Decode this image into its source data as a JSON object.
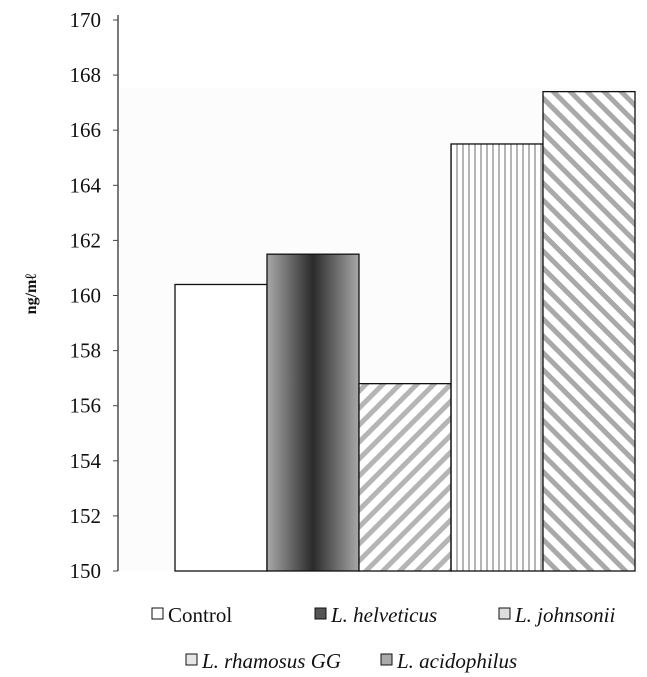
{
  "chart_data": {
    "type": "bar",
    "ylabel": "ng/mℓ",
    "ylim": [
      150,
      170
    ],
    "yticks": [
      150,
      152,
      154,
      156,
      158,
      160,
      162,
      164,
      166,
      168,
      170
    ],
    "series": [
      {
        "name": "Control",
        "value": 160.4,
        "pattern": "white"
      },
      {
        "name": "L. helveticus",
        "value": 161.5,
        "pattern": "dark-gradient"
      },
      {
        "name": "L. johnsonii",
        "value": 156.8,
        "pattern": "diagonal-hatch"
      },
      {
        "name": "L. rhamosus GG",
        "value": 165.5,
        "pattern": "vertical-lines"
      },
      {
        "name": "L. acidophilus",
        "value": 167.4,
        "pattern": "diagonal-hatch-dense"
      }
    ],
    "legend": {
      "rows": [
        [
          "Control",
          "L. helveticus",
          "L. johnsonii"
        ],
        [
          "L. rhamosus GG",
          "L. acidophilus"
        ]
      ]
    },
    "grid": false,
    "legend_position": "bottom"
  }
}
